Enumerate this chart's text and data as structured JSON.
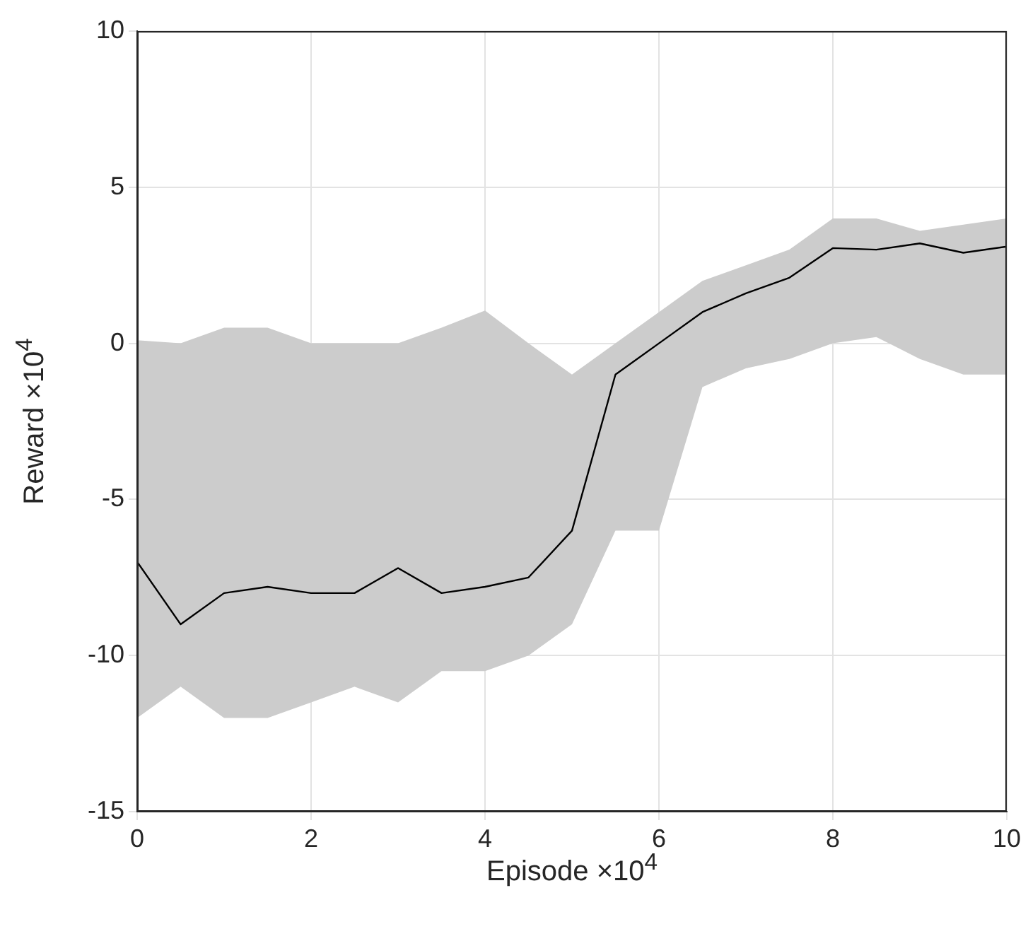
{
  "chart_data": {
    "type": "line",
    "xlabel": "Episode ×10$^{4}$",
    "ylabel": "Reward ×10$^{4}$",
    "x": [
      0,
      0.5,
      1,
      1.5,
      2,
      2.5,
      3,
      3.5,
      4,
      4.5,
      5,
      5.5,
      6,
      6.5,
      7,
      7.5,
      8,
      8.5,
      9,
      9.5,
      10
    ],
    "series": [
      {
        "color": "#000000",
        "values": [
          -7,
          -9,
          -8,
          -7.8,
          -8,
          -8,
          -7.2,
          -8,
          -7.8,
          -7.5,
          -6,
          -1,
          0,
          1,
          1.6,
          2.1,
          3.05,
          3,
          3.2,
          2.9,
          3.1
        ],
        "lower": [
          -12,
          -11,
          -12,
          -12,
          -11.5,
          -11,
          -11.5,
          -10.5,
          -10.5,
          -10,
          -9,
          -6,
          -6,
          -1.4,
          -0.8,
          -0.5,
          0,
          0.2,
          -0.5,
          -1,
          -1
        ],
        "upper": [
          0.1,
          0,
          0.5,
          0.5,
          0,
          0,
          0,
          0.5,
          1.05,
          0,
          -1,
          0,
          1,
          2,
          2.5,
          3,
          4,
          4,
          3.6,
          3.8,
          4
        ]
      }
    ],
    "xlim": [
      0,
      10
    ],
    "xticks": [
      0,
      2,
      4,
      6,
      8,
      10
    ],
    "ylim": [
      -15,
      10
    ],
    "yticks": [
      -15,
      -10,
      -5,
      0,
      5,
      10
    ],
    "grid": true,
    "legend": false,
    "marker": "none",
    "line_style": "solid"
  }
}
